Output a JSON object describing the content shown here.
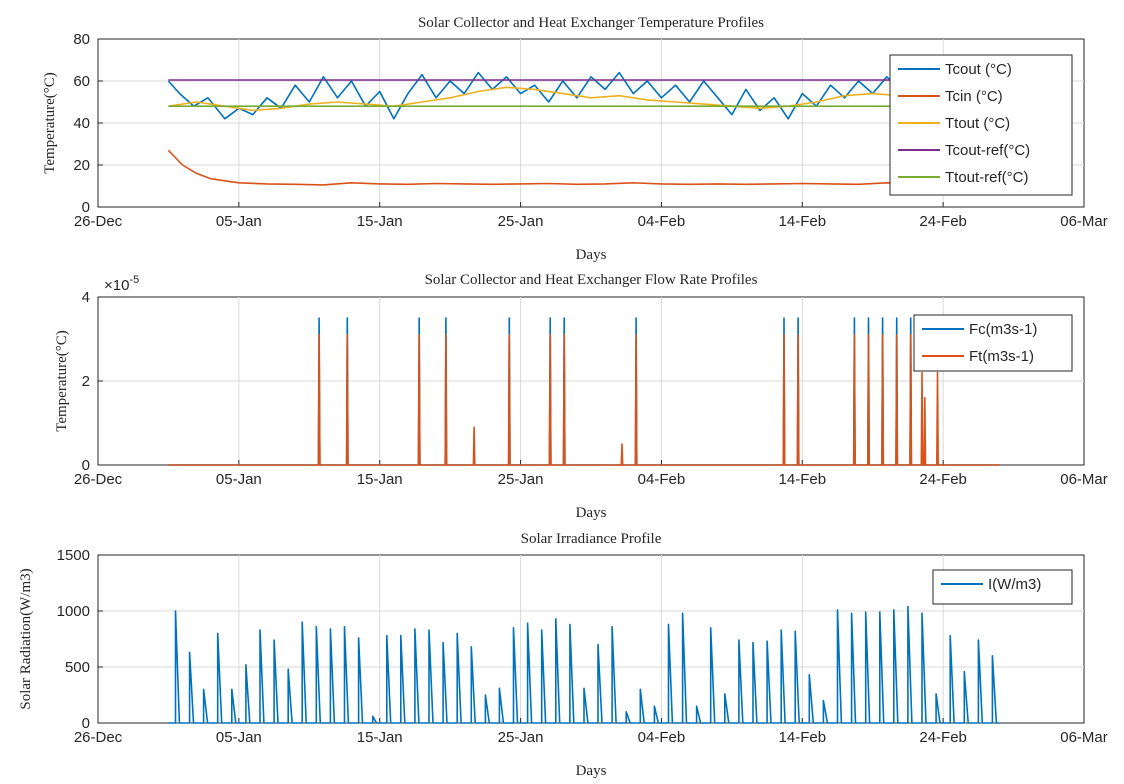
{
  "chart_data": [
    {
      "type": "line",
      "title": "Solar Collector and Heat Exchanger Temperature Profiles",
      "xlabel": "Days",
      "ylabel": "Temperature(°C)",
      "x_ticks": [
        "26-Dec",
        "05-Jan",
        "15-Jan",
        "25-Jan",
        "04-Feb",
        "14-Feb",
        "24-Feb",
        "06-Mar"
      ],
      "xlim": [
        0,
        70
      ],
      "ylim": [
        0,
        80
      ],
      "y_ticks": [
        "0",
        "20",
        "40",
        "60",
        "80"
      ],
      "grid": true,
      "legend_position": "top-right",
      "series": [
        {
          "name": "Tcout (°C)",
          "color": "#0072BD",
          "x": [
            5,
            5.8,
            6.8,
            7.8,
            9,
            10,
            11,
            12,
            13,
            14,
            15,
            16,
            17,
            18,
            19,
            20,
            21,
            22,
            23,
            24,
            25,
            26,
            27,
            28,
            29,
            30,
            31,
            32,
            33,
            34,
            35,
            36,
            37,
            38,
            39,
            40,
            41,
            42,
            43,
            44,
            45,
            46,
            47,
            48,
            49,
            50,
            51,
            52,
            53,
            54,
            55,
            56,
            57,
            58,
            59,
            60,
            61
          ],
          "y": [
            60,
            54,
            48,
            52,
            42,
            47,
            44,
            52,
            47,
            58,
            50,
            62,
            52,
            60,
            48,
            55,
            42,
            54,
            63,
            52,
            60,
            54,
            64,
            56,
            62,
            54,
            58,
            50,
            60,
            52,
            62,
            56,
            64,
            54,
            60,
            52,
            58,
            50,
            60,
            52,
            44,
            56,
            46,
            52,
            42,
            54,
            48,
            58,
            52,
            60,
            54,
            62,
            56,
            60,
            52,
            58,
            50
          ]
        },
        {
          "name": "Tcin (°C)",
          "color": "#D95319",
          "x": [
            5,
            6,
            7,
            8,
            9,
            10,
            12,
            14,
            16,
            18,
            20,
            22,
            24,
            26,
            28,
            30,
            32,
            34,
            36,
            38,
            40,
            42,
            44,
            46,
            48,
            50,
            52,
            54,
            56,
            58,
            60,
            61
          ],
          "y": [
            27,
            20,
            16,
            13.5,
            12.5,
            11.5,
            11,
            10.8,
            10.5,
            11.5,
            11,
            10.8,
            11.2,
            11,
            10.8,
            11,
            11.2,
            10.8,
            11,
            11.5,
            11,
            10.8,
            11,
            10.8,
            11,
            11.2,
            11,
            10.8,
            11.5,
            11,
            12,
            12
          ]
        },
        {
          "name": "Ttout (°C)",
          "color": "#EDB120",
          "x": [
            5,
            7,
            9,
            11,
            13,
            15,
            17,
            19,
            21,
            23,
            25,
            27,
            29,
            31,
            33,
            35,
            37,
            39,
            41,
            43,
            45,
            47,
            49,
            51,
            53,
            55,
            57,
            59,
            61
          ],
          "y": [
            48,
            50,
            48,
            46,
            47,
            49,
            50,
            49,
            48,
            50,
            52,
            55,
            57,
            56,
            54,
            52,
            53,
            51,
            50,
            49,
            48,
            47,
            48,
            50,
            53,
            54,
            53,
            52,
            51
          ]
        },
        {
          "name": "Tcout-ref(°C)",
          "color": "#7E2F8E",
          "x": [
            5,
            61
          ],
          "y": [
            60.5,
            60.5
          ]
        },
        {
          "name": "Ttout-ref(°C)",
          "color": "#77AC30",
          "x": [
            5,
            61
          ],
          "y": [
            48,
            48
          ]
        }
      ]
    },
    {
      "type": "line",
      "title": "Solar Collector and Heat Exchanger Flow Rate Profiles",
      "xlabel": "Days",
      "ylabel": "Temperature(°C)",
      "exponent_label": "×10",
      "exponent_power": "-5",
      "x_ticks": [
        "26-Dec",
        "05-Jan",
        "15-Jan",
        "25-Jan",
        "04-Feb",
        "14-Feb",
        "24-Feb",
        "06-Mar"
      ],
      "xlim": [
        0,
        70
      ],
      "ylim": [
        0,
        4
      ],
      "y_ticks": [
        "0",
        "2",
        "4"
      ],
      "grid": true,
      "legend_position": "top-right",
      "range": [
        5,
        64
      ],
      "series": [
        {
          "name": "Fc(m3s-1)",
          "color": "#0072BD",
          "spikes": [
            [
              15.7,
              3.5
            ],
            [
              17.7,
              3.5
            ],
            [
              22.8,
              3.5
            ],
            [
              24.7,
              3.5
            ],
            [
              29.2,
              3.5
            ],
            [
              32.1,
              3.5
            ],
            [
              33.1,
              3.5
            ],
            [
              38.2,
              3.5
            ],
            [
              48.7,
              3.5
            ],
            [
              49.7,
              3.5
            ],
            [
              53.7,
              3.5
            ],
            [
              54.7,
              3.5
            ],
            [
              55.7,
              3.5
            ],
            [
              56.7,
              3.5
            ],
            [
              57.7,
              3.5
            ]
          ]
        },
        {
          "name": "Ft(m3s-1)",
          "color": "#D95319",
          "spikes": [
            [
              15.7,
              3.1
            ],
            [
              17.7,
              3.1
            ],
            [
              22.8,
              3.1
            ],
            [
              24.7,
              3.1
            ],
            [
              26.7,
              0.9
            ],
            [
              29.2,
              3.1
            ],
            [
              32.1,
              3.1
            ],
            [
              33.1,
              3.1
            ],
            [
              37.2,
              0.5
            ],
            [
              38.2,
              3.1
            ],
            [
              48.7,
              3.1
            ],
            [
              49.7,
              3.1
            ],
            [
              53.7,
              3.1
            ],
            [
              54.7,
              3.1
            ],
            [
              55.7,
              3.1
            ],
            [
              56.7,
              3.1
            ],
            [
              57.7,
              3.1
            ],
            [
              58.5,
              2.2
            ],
            [
              58.7,
              1.6
            ],
            [
              59.6,
              2.2
            ]
          ]
        }
      ]
    },
    {
      "type": "line",
      "title": "Solar Irradiance Profile",
      "xlabel": "Days",
      "ylabel": "Solar Radiation(W/m3)",
      "x_ticks": [
        "26-Dec",
        "05-Jan",
        "15-Jan",
        "25-Jan",
        "04-Feb",
        "14-Feb",
        "24-Feb",
        "06-Mar"
      ],
      "xlim": [
        0,
        70
      ],
      "ylim": [
        0,
        1500
      ],
      "y_ticks": [
        "0",
        "500",
        "1000",
        "1500"
      ],
      "grid": true,
      "legend_position": "top-right",
      "start_day": 5,
      "end_day": 64,
      "series": [
        {
          "name": "I(W/m3)",
          "color": "#0072BD",
          "daily_peaks": [
            1000,
            630,
            300,
            800,
            300,
            520,
            830,
            740,
            480,
            900,
            860,
            840,
            860,
            760,
            60,
            780,
            780,
            840,
            830,
            720,
            800,
            680,
            250,
            310,
            850,
            890,
            830,
            930,
            880,
            310,
            700,
            860,
            100,
            300,
            150,
            880,
            980,
            150,
            850,
            260,
            740,
            720,
            730,
            830,
            820,
            430,
            200,
            1010,
            980,
            990,
            990,
            1010,
            1040,
            980,
            260,
            780,
            460,
            740,
            600
          ]
        }
      ]
    }
  ]
}
